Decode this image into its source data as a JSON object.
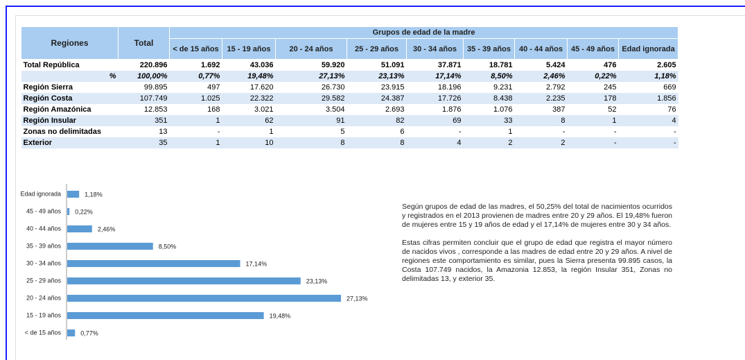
{
  "table": {
    "header": [
      "Regiones",
      "Total"
    ],
    "group_header": "Grupos de edad de la madre",
    "subheaders": [
      "< de 15 años",
      "15 - 19 años",
      "20 - 24 años",
      "25 - 29 años",
      "30 - 34 años",
      "35 - 39 años",
      "40 - 44 años",
      "45 - 49 años",
      "Edad ignorada"
    ],
    "rows": [
      [
        "Total República",
        "220.896",
        "1.692",
        "43.036",
        "59.920",
        "51.091",
        "37.871",
        "18.781",
        "5.424",
        "476",
        "2.605"
      ],
      [
        "%",
        "100,00%",
        "0,77%",
        "19,48%",
        "27,13%",
        "23,13%",
        "17,14%",
        "8,50%",
        "2,46%",
        "0,22%",
        "1,18%"
      ],
      [
        "Región Sierra",
        "99.895",
        "497",
        "17.620",
        "26.730",
        "23.915",
        "18.196",
        "9.231",
        "2.792",
        "245",
        "669"
      ],
      [
        "Región Costa",
        "107.749",
        "1.025",
        "22.322",
        "29.582",
        "24.387",
        "17.726",
        "8.438",
        "2.235",
        "178",
        "1.856"
      ],
      [
        "Región Amazónica",
        "12.853",
        "168",
        "3.021",
        "3.504",
        "2.693",
        "1.876",
        "1.076",
        "387",
        "52",
        "76"
      ],
      [
        "Región Insular",
        "351",
        "1",
        "62",
        "91",
        "82",
        "69",
        "33",
        "8",
        "1",
        "4"
      ],
      [
        "Zonas no delimitadas",
        "13",
        "-",
        "1",
        "5",
        "6",
        "-",
        "1",
        "-",
        "-",
        "-"
      ],
      [
        "Exterior",
        "35",
        "1",
        "10",
        "8",
        "8",
        "4",
        "2",
        "2",
        "-",
        "-"
      ]
    ]
  },
  "chart_data": {
    "type": "bar",
    "orientation": "horizontal",
    "color": "#5b9bd5",
    "categories": [
      "Edad ignorada",
      "45 - 49 años",
      "40 - 44 años",
      "35 - 39 años",
      "30 - 34 años",
      "25 - 29 años",
      "20 - 24 años",
      "15 - 19 años",
      "< de 15 años"
    ],
    "values": [
      1.18,
      0.22,
      2.46,
      8.5,
      17.14,
      23.13,
      27.13,
      19.48,
      0.77
    ],
    "value_labels": [
      "1,18%",
      "0,22%",
      "2,46%",
      "8,50%",
      "17,14%",
      "23,13%",
      "27,13%",
      "19,48%",
      "0,77%"
    ]
  },
  "text": {
    "paragraphs": [
      "Según grupos de edad de las madres, el 50,25% del total de nacimientos ocurridos y registrados en el 2013 provienen de madres entre 20 y 29 años. El 19,48% fueron de mujeres entre 15 y 19 años de edad y el 17,14% de mujeres entre 30 y 34 años.",
      "Estas cifras permiten concluir que el grupo de edad que registra el mayor número de nacidos vivos , corresponde a las madres de edad entre 20 y 29 años. A nivel de regiones este comportamiento es similar, pues la Sierra presenta 99.895 casos, la Costa 107.749 nacidos, la Amazonia 12.853, la región Insular 351, Zonas no delimitadas 13, y exterior 35."
    ]
  }
}
